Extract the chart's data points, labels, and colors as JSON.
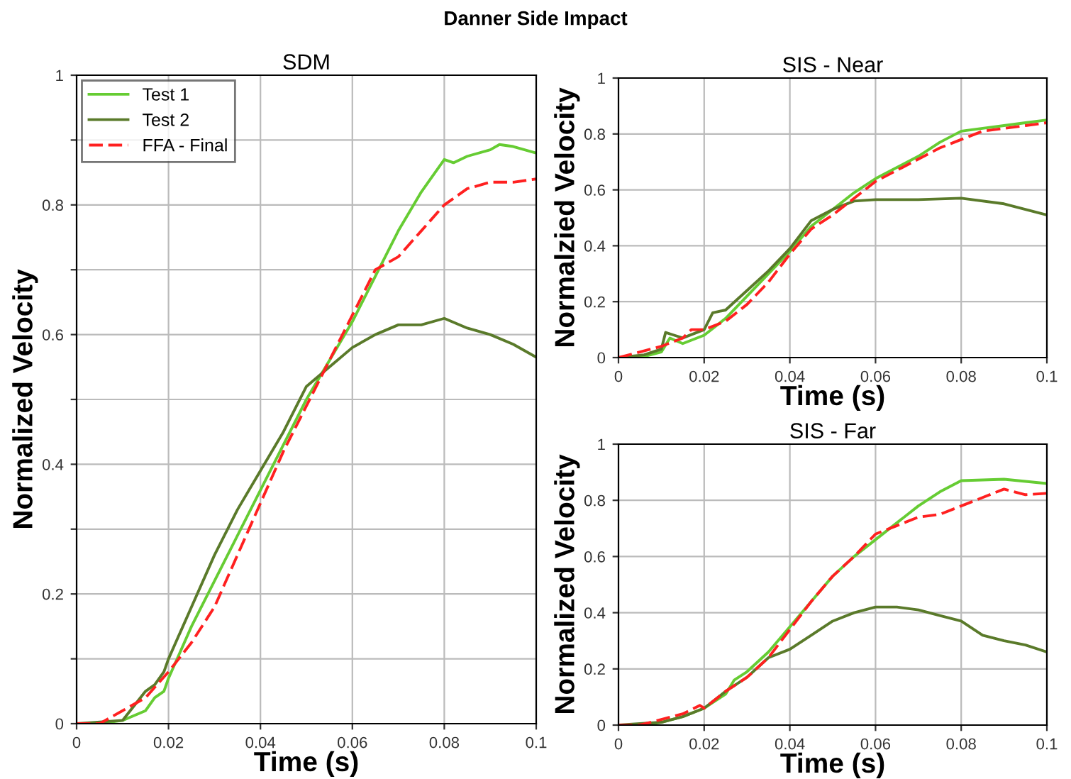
{
  "chart_data": [
    {
      "type": "line",
      "title": "SDM",
      "xlabel": "Time (s)",
      "ylabel": "Normalized Velocity",
      "xlim": [
        0,
        0.1
      ],
      "ylim": [
        0,
        1
      ],
      "xticks": [
        0,
        0.02,
        0.04,
        0.06,
        0.08,
        0.1
      ],
      "yticks": [
        0,
        {
          "value": 0.1,
          "label": null
        },
        0.2,
        {
          "value": 0.3,
          "label": null
        },
        0.4,
        {
          "value": 0.5,
          "label": null
        },
        0.6,
        {
          "value": 0.7,
          "label": null
        },
        0.8,
        {
          "value": 0.9,
          "label": null
        },
        1
      ],
      "grid": true,
      "legend": "top left",
      "annotations": [
        "Danner Side Impact"
      ],
      "series": [
        {
          "name": "Test 1",
          "color": "#66cc33",
          "line_style": "solid",
          "x": [
            0,
            0.005,
            0.01,
            0.015,
            0.017,
            0.019,
            0.02,
            0.025,
            0.03,
            0.035,
            0.04,
            0.045,
            0.05,
            0.055,
            0.06,
            0.065,
            0.07,
            0.075,
            0.08,
            0.082,
            0.085,
            0.09,
            0.092,
            0.095,
            0.1
          ],
          "values": [
            0,
            0,
            0.005,
            0.02,
            0.04,
            0.05,
            0.07,
            0.15,
            0.22,
            0.29,
            0.36,
            0.43,
            0.5,
            0.56,
            0.62,
            0.69,
            0.76,
            0.82,
            0.87,
            0.865,
            0.875,
            0.885,
            0.893,
            0.89,
            0.88
          ]
        },
        {
          "name": "Test 2",
          "color": "#5a7a2a",
          "line_style": "solid",
          "x": [
            0,
            0.01,
            0.015,
            0.017,
            0.019,
            0.02,
            0.025,
            0.03,
            0.035,
            0.04,
            0.045,
            0.05,
            0.055,
            0.06,
            0.065,
            0.07,
            0.075,
            0.08,
            0.085,
            0.09,
            0.095,
            0.1
          ],
          "values": [
            0,
            0.005,
            0.05,
            0.06,
            0.08,
            0.1,
            0.18,
            0.26,
            0.33,
            0.39,
            0.45,
            0.52,
            0.55,
            0.58,
            0.6,
            0.615,
            0.615,
            0.625,
            0.61,
            0.6,
            0.585,
            0.565
          ]
        },
        {
          "name": "FFA - Final",
          "color": "#ff2020",
          "line_style": "dashed",
          "x": [
            0,
            0.005,
            0.01,
            0.015,
            0.02,
            0.025,
            0.03,
            0.035,
            0.04,
            0.045,
            0.05,
            0.055,
            0.06,
            0.065,
            0.07,
            0.075,
            0.08,
            0.085,
            0.09,
            0.095,
            0.1
          ],
          "values": [
            0,
            0,
            0.02,
            0.04,
            0.08,
            0.125,
            0.18,
            0.26,
            0.34,
            0.42,
            0.49,
            0.56,
            0.63,
            0.7,
            0.72,
            0.76,
            0.8,
            0.825,
            0.835,
            0.835,
            0.84
          ]
        }
      ]
    },
    {
      "type": "line",
      "title": "SIS - Near",
      "xlabel": "Time (s)",
      "ylabel": "Normalzied Velocity",
      "xlim": [
        0,
        0.1
      ],
      "ylim": [
        0,
        1
      ],
      "xticks": [
        0,
        0.02,
        0.04,
        0.06,
        0.08,
        0.1
      ],
      "yticks": [
        0,
        0.2,
        0.4,
        0.6,
        0.8,
        1
      ],
      "grid": true,
      "series": [
        {
          "color": "#66cc33",
          "line_style": "solid",
          "x": [
            0,
            0.005,
            0.01,
            0.012,
            0.015,
            0.02,
            0.025,
            0.03,
            0.035,
            0.04,
            0.045,
            0.05,
            0.055,
            0.06,
            0.065,
            0.07,
            0.075,
            0.08,
            0.085,
            0.09,
            0.095,
            0.1
          ],
          "values": [
            0,
            0,
            0.02,
            0.07,
            0.05,
            0.08,
            0.14,
            0.22,
            0.3,
            0.38,
            0.47,
            0.53,
            0.59,
            0.64,
            0.68,
            0.72,
            0.77,
            0.81,
            0.82,
            0.83,
            0.84,
            0.85
          ]
        },
        {
          "color": "#5a7a2a",
          "line_style": "solid",
          "x": [
            0,
            0.006,
            0.01,
            0.011,
            0.013,
            0.015,
            0.02,
            0.022,
            0.025,
            0.03,
            0.035,
            0.04,
            0.045,
            0.05,
            0.055,
            0.06,
            0.07,
            0.08,
            0.09,
            0.1
          ],
          "values": [
            0,
            0.01,
            0.03,
            0.09,
            0.08,
            0.07,
            0.1,
            0.16,
            0.17,
            0.24,
            0.31,
            0.39,
            0.49,
            0.53,
            0.56,
            0.565,
            0.565,
            0.57,
            0.55,
            0.51
          ]
        },
        {
          "color": "#ff2020",
          "line_style": "dashed",
          "x": [
            0,
            0.005,
            0.01,
            0.015,
            0.017,
            0.02,
            0.025,
            0.03,
            0.035,
            0.04,
            0.045,
            0.05,
            0.055,
            0.06,
            0.065,
            0.07,
            0.075,
            0.08,
            0.085,
            0.09,
            0.095,
            0.1
          ],
          "values": [
            0,
            0.02,
            0.04,
            0.07,
            0.1,
            0.1,
            0.13,
            0.19,
            0.27,
            0.37,
            0.46,
            0.51,
            0.57,
            0.63,
            0.67,
            0.71,
            0.75,
            0.78,
            0.81,
            0.82,
            0.83,
            0.84
          ]
        }
      ]
    },
    {
      "type": "line",
      "title": "SIS - Far",
      "xlabel": "Time (s)",
      "ylabel": "Normalized Velocity",
      "xlim": [
        0,
        0.1
      ],
      "ylim": [
        0,
        1
      ],
      "xticks": [
        0,
        0.02,
        0.04,
        0.06,
        0.08,
        0.1
      ],
      "yticks": [
        0,
        0.2,
        0.4,
        0.6,
        0.8,
        1
      ],
      "grid": true,
      "series": [
        {
          "color": "#66cc33",
          "line_style": "solid",
          "x": [
            0,
            0.005,
            0.01,
            0.015,
            0.02,
            0.025,
            0.027,
            0.03,
            0.035,
            0.04,
            0.045,
            0.05,
            0.055,
            0.06,
            0.065,
            0.07,
            0.075,
            0.08,
            0.09,
            0.1
          ],
          "values": [
            0,
            0,
            0.01,
            0.03,
            0.06,
            0.11,
            0.16,
            0.19,
            0.26,
            0.35,
            0.44,
            0.53,
            0.6,
            0.66,
            0.72,
            0.78,
            0.83,
            0.87,
            0.875,
            0.86
          ]
        },
        {
          "color": "#5a7a2a",
          "line_style": "solid",
          "x": [
            0,
            0.01,
            0.015,
            0.02,
            0.025,
            0.03,
            0.035,
            0.04,
            0.045,
            0.05,
            0.055,
            0.06,
            0.065,
            0.07,
            0.075,
            0.08,
            0.085,
            0.09,
            0.095,
            0.1
          ],
          "values": [
            0,
            0.01,
            0.03,
            0.06,
            0.12,
            0.17,
            0.24,
            0.27,
            0.32,
            0.37,
            0.4,
            0.42,
            0.42,
            0.41,
            0.39,
            0.37,
            0.32,
            0.3,
            0.285,
            0.26
          ]
        },
        {
          "color": "#ff2020",
          "line_style": "dashed",
          "x": [
            0,
            0.005,
            0.01,
            0.015,
            0.019,
            0.02,
            0.025,
            0.03,
            0.035,
            0.04,
            0.045,
            0.05,
            0.055,
            0.06,
            0.065,
            0.07,
            0.075,
            0.08,
            0.085,
            0.09,
            0.095,
            0.1
          ],
          "values": [
            0,
            0,
            0.02,
            0.04,
            0.07,
            0.06,
            0.12,
            0.17,
            0.24,
            0.34,
            0.44,
            0.53,
            0.6,
            0.68,
            0.71,
            0.74,
            0.75,
            0.78,
            0.81,
            0.84,
            0.82,
            0.825
          ]
        }
      ]
    }
  ]
}
